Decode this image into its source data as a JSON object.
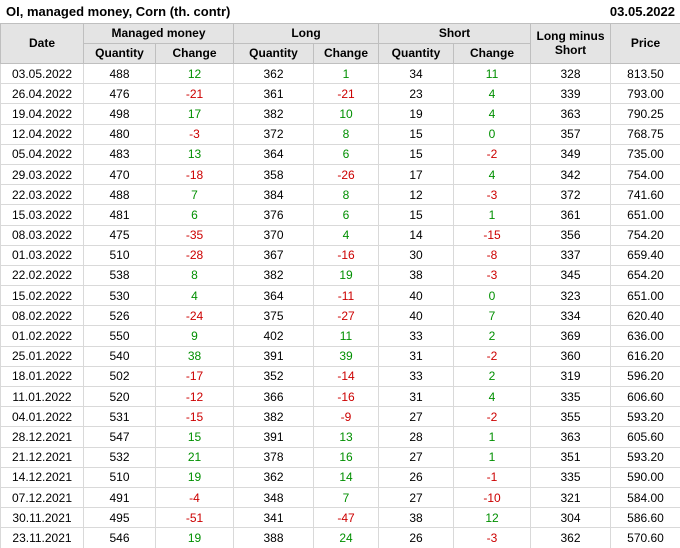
{
  "title": "OI, managed money, Corn (th. contr)",
  "report_date": "03.05.2022",
  "colors": {
    "positive": "#008f00",
    "negative": "#cc0000",
    "header_bg": "#e4e4e4",
    "border_strong": "#bfbfbf",
    "border_light": "#d9d9d9"
  },
  "columns": {
    "date": "Date",
    "managed_money": "Managed money",
    "long": "Long",
    "short": "Short",
    "long_minus_short": "Long minus Short",
    "price": "Price",
    "quantity": "Quantity",
    "change": "Change"
  },
  "rows": [
    {
      "date": "03.05.2022",
      "mm_qty": "488",
      "mm_chg": "12",
      "long_qty": "362",
      "long_chg": "1",
      "short_qty": "34",
      "short_chg": "11",
      "lms": "328",
      "price": "813.50"
    },
    {
      "date": "26.04.2022",
      "mm_qty": "476",
      "mm_chg": "-21",
      "long_qty": "361",
      "long_chg": "-21",
      "short_qty": "23",
      "short_chg": "4",
      "lms": "339",
      "price": "793.00"
    },
    {
      "date": "19.04.2022",
      "mm_qty": "498",
      "mm_chg": "17",
      "long_qty": "382",
      "long_chg": "10",
      "short_qty": "19",
      "short_chg": "4",
      "lms": "363",
      "price": "790.25"
    },
    {
      "date": "12.04.2022",
      "mm_qty": "480",
      "mm_chg": "-3",
      "long_qty": "372",
      "long_chg": "8",
      "short_qty": "15",
      "short_chg": "0",
      "lms": "357",
      "price": "768.75"
    },
    {
      "date": "05.04.2022",
      "mm_qty": "483",
      "mm_chg": "13",
      "long_qty": "364",
      "long_chg": "6",
      "short_qty": "15",
      "short_chg": "-2",
      "lms": "349",
      "price": "735.00"
    },
    {
      "date": "29.03.2022",
      "mm_qty": "470",
      "mm_chg": "-18",
      "long_qty": "358",
      "long_chg": "-26",
      "short_qty": "17",
      "short_chg": "4",
      "lms": "342",
      "price": "754.00"
    },
    {
      "date": "22.03.2022",
      "mm_qty": "488",
      "mm_chg": "7",
      "long_qty": "384",
      "long_chg": "8",
      "short_qty": "12",
      "short_chg": "-3",
      "lms": "372",
      "price": "741.60"
    },
    {
      "date": "15.03.2022",
      "mm_qty": "481",
      "mm_chg": "6",
      "long_qty": "376",
      "long_chg": "6",
      "short_qty": "15",
      "short_chg": "1",
      "lms": "361",
      "price": "651.00"
    },
    {
      "date": "08.03.2022",
      "mm_qty": "475",
      "mm_chg": "-35",
      "long_qty": "370",
      "long_chg": "4",
      "short_qty": "14",
      "short_chg": "-15",
      "lms": "356",
      "price": "754.20"
    },
    {
      "date": "01.03.2022",
      "mm_qty": "510",
      "mm_chg": "-28",
      "long_qty": "367",
      "long_chg": "-16",
      "short_qty": "30",
      "short_chg": "-8",
      "lms": "337",
      "price": "659.40"
    },
    {
      "date": "22.02.2022",
      "mm_qty": "538",
      "mm_chg": "8",
      "long_qty": "382",
      "long_chg": "19",
      "short_qty": "38",
      "short_chg": "-3",
      "lms": "345",
      "price": "654.20"
    },
    {
      "date": "15.02.2022",
      "mm_qty": "530",
      "mm_chg": "4",
      "long_qty": "364",
      "long_chg": "-11",
      "short_qty": "40",
      "short_chg": "0",
      "lms": "323",
      "price": "651.00"
    },
    {
      "date": "08.02.2022",
      "mm_qty": "526",
      "mm_chg": "-24",
      "long_qty": "375",
      "long_chg": "-27",
      "short_qty": "40",
      "short_chg": "7",
      "lms": "334",
      "price": "620.40"
    },
    {
      "date": "01.02.2022",
      "mm_qty": "550",
      "mm_chg": "9",
      "long_qty": "402",
      "long_chg": "11",
      "short_qty": "33",
      "short_chg": "2",
      "lms": "369",
      "price": "636.00"
    },
    {
      "date": "25.01.2022",
      "mm_qty": "540",
      "mm_chg": "38",
      "long_qty": "391",
      "long_chg": "39",
      "short_qty": "31",
      "short_chg": "-2",
      "lms": "360",
      "price": "616.20"
    },
    {
      "date": "18.01.2022",
      "mm_qty": "502",
      "mm_chg": "-17",
      "long_qty": "352",
      "long_chg": "-14",
      "short_qty": "33",
      "short_chg": "2",
      "lms": "319",
      "price": "596.20"
    },
    {
      "date": "11.01.2022",
      "mm_qty": "520",
      "mm_chg": "-12",
      "long_qty": "366",
      "long_chg": "-16",
      "short_qty": "31",
      "short_chg": "4",
      "lms": "335",
      "price": "606.60"
    },
    {
      "date": "04.01.2022",
      "mm_qty": "531",
      "mm_chg": "-15",
      "long_qty": "382",
      "long_chg": "-9",
      "short_qty": "27",
      "short_chg": "-2",
      "lms": "355",
      "price": "593.20"
    },
    {
      "date": "28.12.2021",
      "mm_qty": "547",
      "mm_chg": "15",
      "long_qty": "391",
      "long_chg": "13",
      "short_qty": "28",
      "short_chg": "1",
      "lms": "363",
      "price": "605.60"
    },
    {
      "date": "21.12.2021",
      "mm_qty": "532",
      "mm_chg": "21",
      "long_qty": "378",
      "long_chg": "16",
      "short_qty": "27",
      "short_chg": "1",
      "lms": "351",
      "price": "593.20"
    },
    {
      "date": "14.12.2021",
      "mm_qty": "510",
      "mm_chg": "19",
      "long_qty": "362",
      "long_chg": "14",
      "short_qty": "26",
      "short_chg": "-1",
      "lms": "335",
      "price": "590.00"
    },
    {
      "date": "07.12.2021",
      "mm_qty": "491",
      "mm_chg": "-4",
      "long_qty": "348",
      "long_chg": "7",
      "short_qty": "27",
      "short_chg": "-10",
      "lms": "321",
      "price": "584.00"
    },
    {
      "date": "30.11.2021",
      "mm_qty": "495",
      "mm_chg": "-51",
      "long_qty": "341",
      "long_chg": "-47",
      "short_qty": "38",
      "short_chg": "12",
      "lms": "304",
      "price": "586.60"
    },
    {
      "date": "23.11.2021",
      "mm_qty": "546",
      "mm_chg": "19",
      "long_qty": "388",
      "long_chg": "24",
      "short_qty": "26",
      "short_chg": "-3",
      "lms": "362",
      "price": "570.60"
    }
  ]
}
